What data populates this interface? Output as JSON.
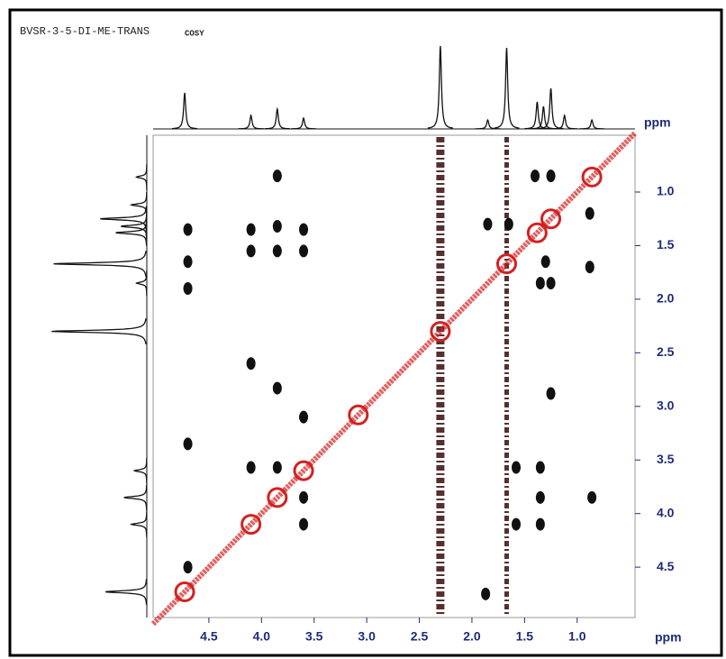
{
  "chart_data": {
    "type": "cosy",
    "title": "BVSR-3-5-DI-ME-TRANS",
    "subtitle": "COSY",
    "x_label": "ppm",
    "y_label": "ppm",
    "xlim": [
      5.03,
      0.45
    ],
    "ylim": [
      0.47,
      4.97
    ],
    "xticks": [
      4.5,
      {
        "value": 4,
        "label": "4.0"
      },
      3.5,
      {
        "value": 3,
        "label": "3.0"
      },
      2.5,
      {
        "value": 2,
        "label": "2.0"
      },
      1.5,
      {
        "value": 1,
        "label": "1.0"
      }
    ],
    "yticks": [
      {
        "value": 1,
        "label": "1.0"
      },
      1.5,
      {
        "value": 2,
        "label": "2.0"
      },
      2.5,
      {
        "value": 3,
        "label": "3.0"
      },
      3.5,
      {
        "value": 4,
        "label": "4.0"
      },
      4.5
    ],
    "projection": {
      "color": "#111111",
      "ppm": [
        4.73,
        4.1,
        3.85,
        3.6,
        2.3,
        1.85,
        1.67,
        1.38,
        1.32,
        1.25,
        1.12,
        0.86
      ],
      "intensity": [
        40,
        15,
        22,
        12,
        92,
        10,
        90,
        30,
        25,
        45,
        15,
        10
      ]
    },
    "diagonal_peaks": {
      "color": "#d42020",
      "x": [
        4.73,
        4.1,
        3.85,
        3.6,
        3.08,
        2.3,
        1.67,
        1.38,
        1.25,
        0.86
      ]
    },
    "t1_noise_ppm": [
      2.3,
      1.67
    ],
    "cross_peaks": {
      "color": "#111111",
      "x": [
        3.85,
        4.7,
        4.1,
        3.85,
        3.6,
        4.1,
        3.85,
        3.6,
        4.7,
        4.7,
        4.1,
        3.85,
        3.6,
        4.1,
        3.85,
        4.7,
        3.6,
        3.6,
        4.7,
        1.85,
        1.65,
        1.4,
        1.25,
        0.88,
        0.88,
        1.3,
        1.35,
        1.25,
        1.58,
        1.35,
        1.35,
        1.35,
        1.58,
        0.86,
        1.87,
        1.25
      ],
      "y": [
        0.85,
        1.35,
        1.35,
        1.32,
        1.35,
        1.55,
        1.55,
        1.55,
        1.65,
        1.9,
        2.6,
        2.83,
        3.1,
        3.57,
        3.57,
        3.35,
        3.85,
        4.1,
        4.5,
        1.3,
        1.3,
        0.85,
        0.85,
        1.2,
        1.7,
        1.65,
        1.85,
        1.85,
        3.57,
        3.57,
        3.85,
        4.1,
        4.1,
        3.85,
        4.75,
        2.88
      ]
    }
  }
}
